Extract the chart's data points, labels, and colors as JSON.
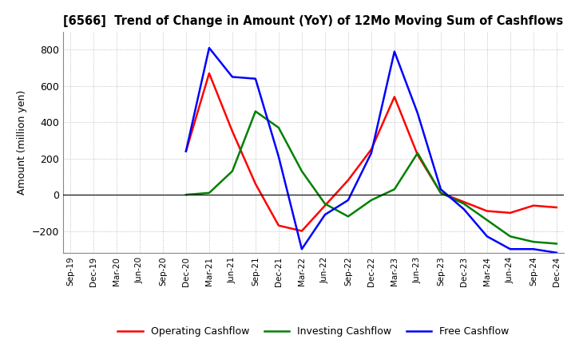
{
  "title": "[6566]  Trend of Change in Amount (YoY) of 12Mo Moving Sum of Cashflows",
  "ylabel": "Amount (million yen)",
  "x_labels": [
    "Sep-19",
    "Dec-19",
    "Mar-20",
    "Jun-20",
    "Sep-20",
    "Dec-20",
    "Mar-21",
    "Jun-21",
    "Sep-21",
    "Dec-21",
    "Mar-22",
    "Jun-22",
    "Sep-22",
    "Dec-22",
    "Mar-23",
    "Jun-23",
    "Sep-23",
    "Dec-23",
    "Mar-24",
    "Jun-24",
    "Sep-24",
    "Dec-24"
  ],
  "operating": [
    null,
    null,
    null,
    null,
    null,
    240,
    670,
    350,
    60,
    -170,
    -200,
    -60,
    80,
    250,
    540,
    220,
    10,
    -40,
    -90,
    -100,
    -60,
    -70
  ],
  "investing": [
    null,
    null,
    null,
    null,
    null,
    0,
    10,
    130,
    460,
    370,
    130,
    -50,
    -120,
    -30,
    30,
    230,
    10,
    -50,
    -140,
    -230,
    -260,
    -270
  ],
  "free": [
    null,
    null,
    null,
    null,
    null,
    240,
    810,
    650,
    640,
    210,
    -300,
    -110,
    -30,
    230,
    790,
    450,
    30,
    -80,
    -230,
    -300,
    -300,
    -320
  ],
  "ylim": [
    -320,
    900
  ],
  "yticks": [
    -200,
    0,
    200,
    400,
    600,
    800
  ],
  "operating_color": "#ff0000",
  "investing_color": "#008000",
  "free_color": "#0000ff",
  "background_color": "#ffffff",
  "grid_color": "#b0b0b0"
}
